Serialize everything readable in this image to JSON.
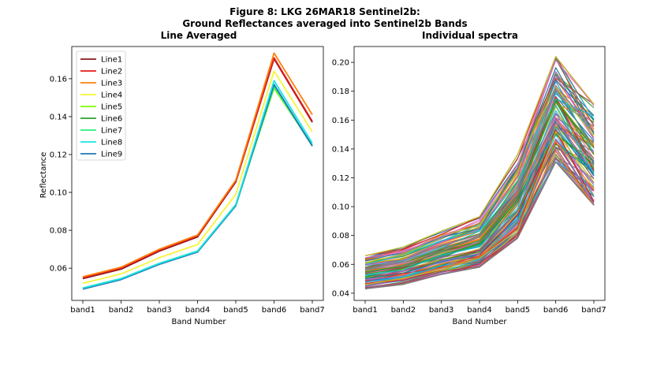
{
  "figure": {
    "title_line1": "Figure 8: LKG 26MAR18  Sentinel2b:",
    "title_line2": "Ground Reflectances averaged into Sentinel2b Bands"
  },
  "chart_data": [
    {
      "type": "line",
      "title": "Line Averaged",
      "xlabel": "Band Number",
      "ylabel": "Reflectance",
      "categories": [
        "band1",
        "band2",
        "band3",
        "band4",
        "band5",
        "band6",
        "band7"
      ],
      "ylim": [
        0.043,
        0.177
      ],
      "yticks": [
        "0.06",
        "0.08",
        "0.10",
        "0.12",
        "0.14",
        "0.16"
      ],
      "legend_position": "upper-left",
      "series": [
        {
          "name": "Line1",
          "color": "#8b1a1a",
          "values": [
            0.0545,
            0.0595,
            0.069,
            0.0765,
            0.1055,
            0.1705,
            0.137
          ]
        },
        {
          "name": "Line2",
          "color": "#e41a1c",
          "values": [
            0.055,
            0.06,
            0.0695,
            0.077,
            0.106,
            0.171,
            0.1375
          ]
        },
        {
          "name": "Line3",
          "color": "#ff7f0e",
          "values": [
            0.0555,
            0.0605,
            0.07,
            0.0775,
            0.1065,
            0.1735,
            0.141
          ]
        },
        {
          "name": "Line4",
          "color": "#f5f53a",
          "values": [
            0.052,
            0.057,
            0.0655,
            0.0725,
            0.099,
            0.164,
            0.132
          ]
        },
        {
          "name": "Line5",
          "color": "#7fff00",
          "values": [
            0.0495,
            0.0545,
            0.0625,
            0.069,
            0.0935,
            0.155,
            0.125
          ]
        },
        {
          "name": "Line6",
          "color": "#2ca02c",
          "values": [
            0.0495,
            0.0545,
            0.0625,
            0.069,
            0.0935,
            0.156,
            0.1245
          ]
        },
        {
          "name": "Line7",
          "color": "#2ef07f",
          "values": [
            0.0495,
            0.0545,
            0.0625,
            0.069,
            0.093,
            0.156,
            0.1245
          ]
        },
        {
          "name": "Line8",
          "color": "#1ae5e5",
          "values": [
            0.0495,
            0.0545,
            0.0625,
            0.069,
            0.0935,
            0.159,
            0.126
          ]
        },
        {
          "name": "Line9",
          "color": "#1f77b4",
          "values": [
            0.049,
            0.054,
            0.062,
            0.0685,
            0.093,
            0.157,
            0.1245
          ]
        }
      ]
    },
    {
      "type": "line",
      "title": "Individual spectra",
      "xlabel": "Band Number",
      "ylabel": "",
      "categories": [
        "band1",
        "band2",
        "band3",
        "band4",
        "band5",
        "band6",
        "band7"
      ],
      "ylim": [
        0.035,
        0.211
      ],
      "yticks": [
        "0.04",
        "0.06",
        "0.08",
        "0.10",
        "0.12",
        "0.14",
        "0.16",
        "0.18",
        "0.20"
      ],
      "series_count": 120,
      "series_low": [
        0.043,
        0.046,
        0.053,
        0.058,
        0.078,
        0.131,
        0.101
      ],
      "series_high": [
        0.066,
        0.072,
        0.083,
        0.093,
        0.136,
        0.204,
        0.171
      ],
      "palette": [
        "#1f77b4",
        "#ff7f0e",
        "#2ca02c",
        "#d62728",
        "#9467bd",
        "#8c564b",
        "#e377c2",
        "#7f7f7f",
        "#bcbd22",
        "#17becf"
      ]
    }
  ]
}
